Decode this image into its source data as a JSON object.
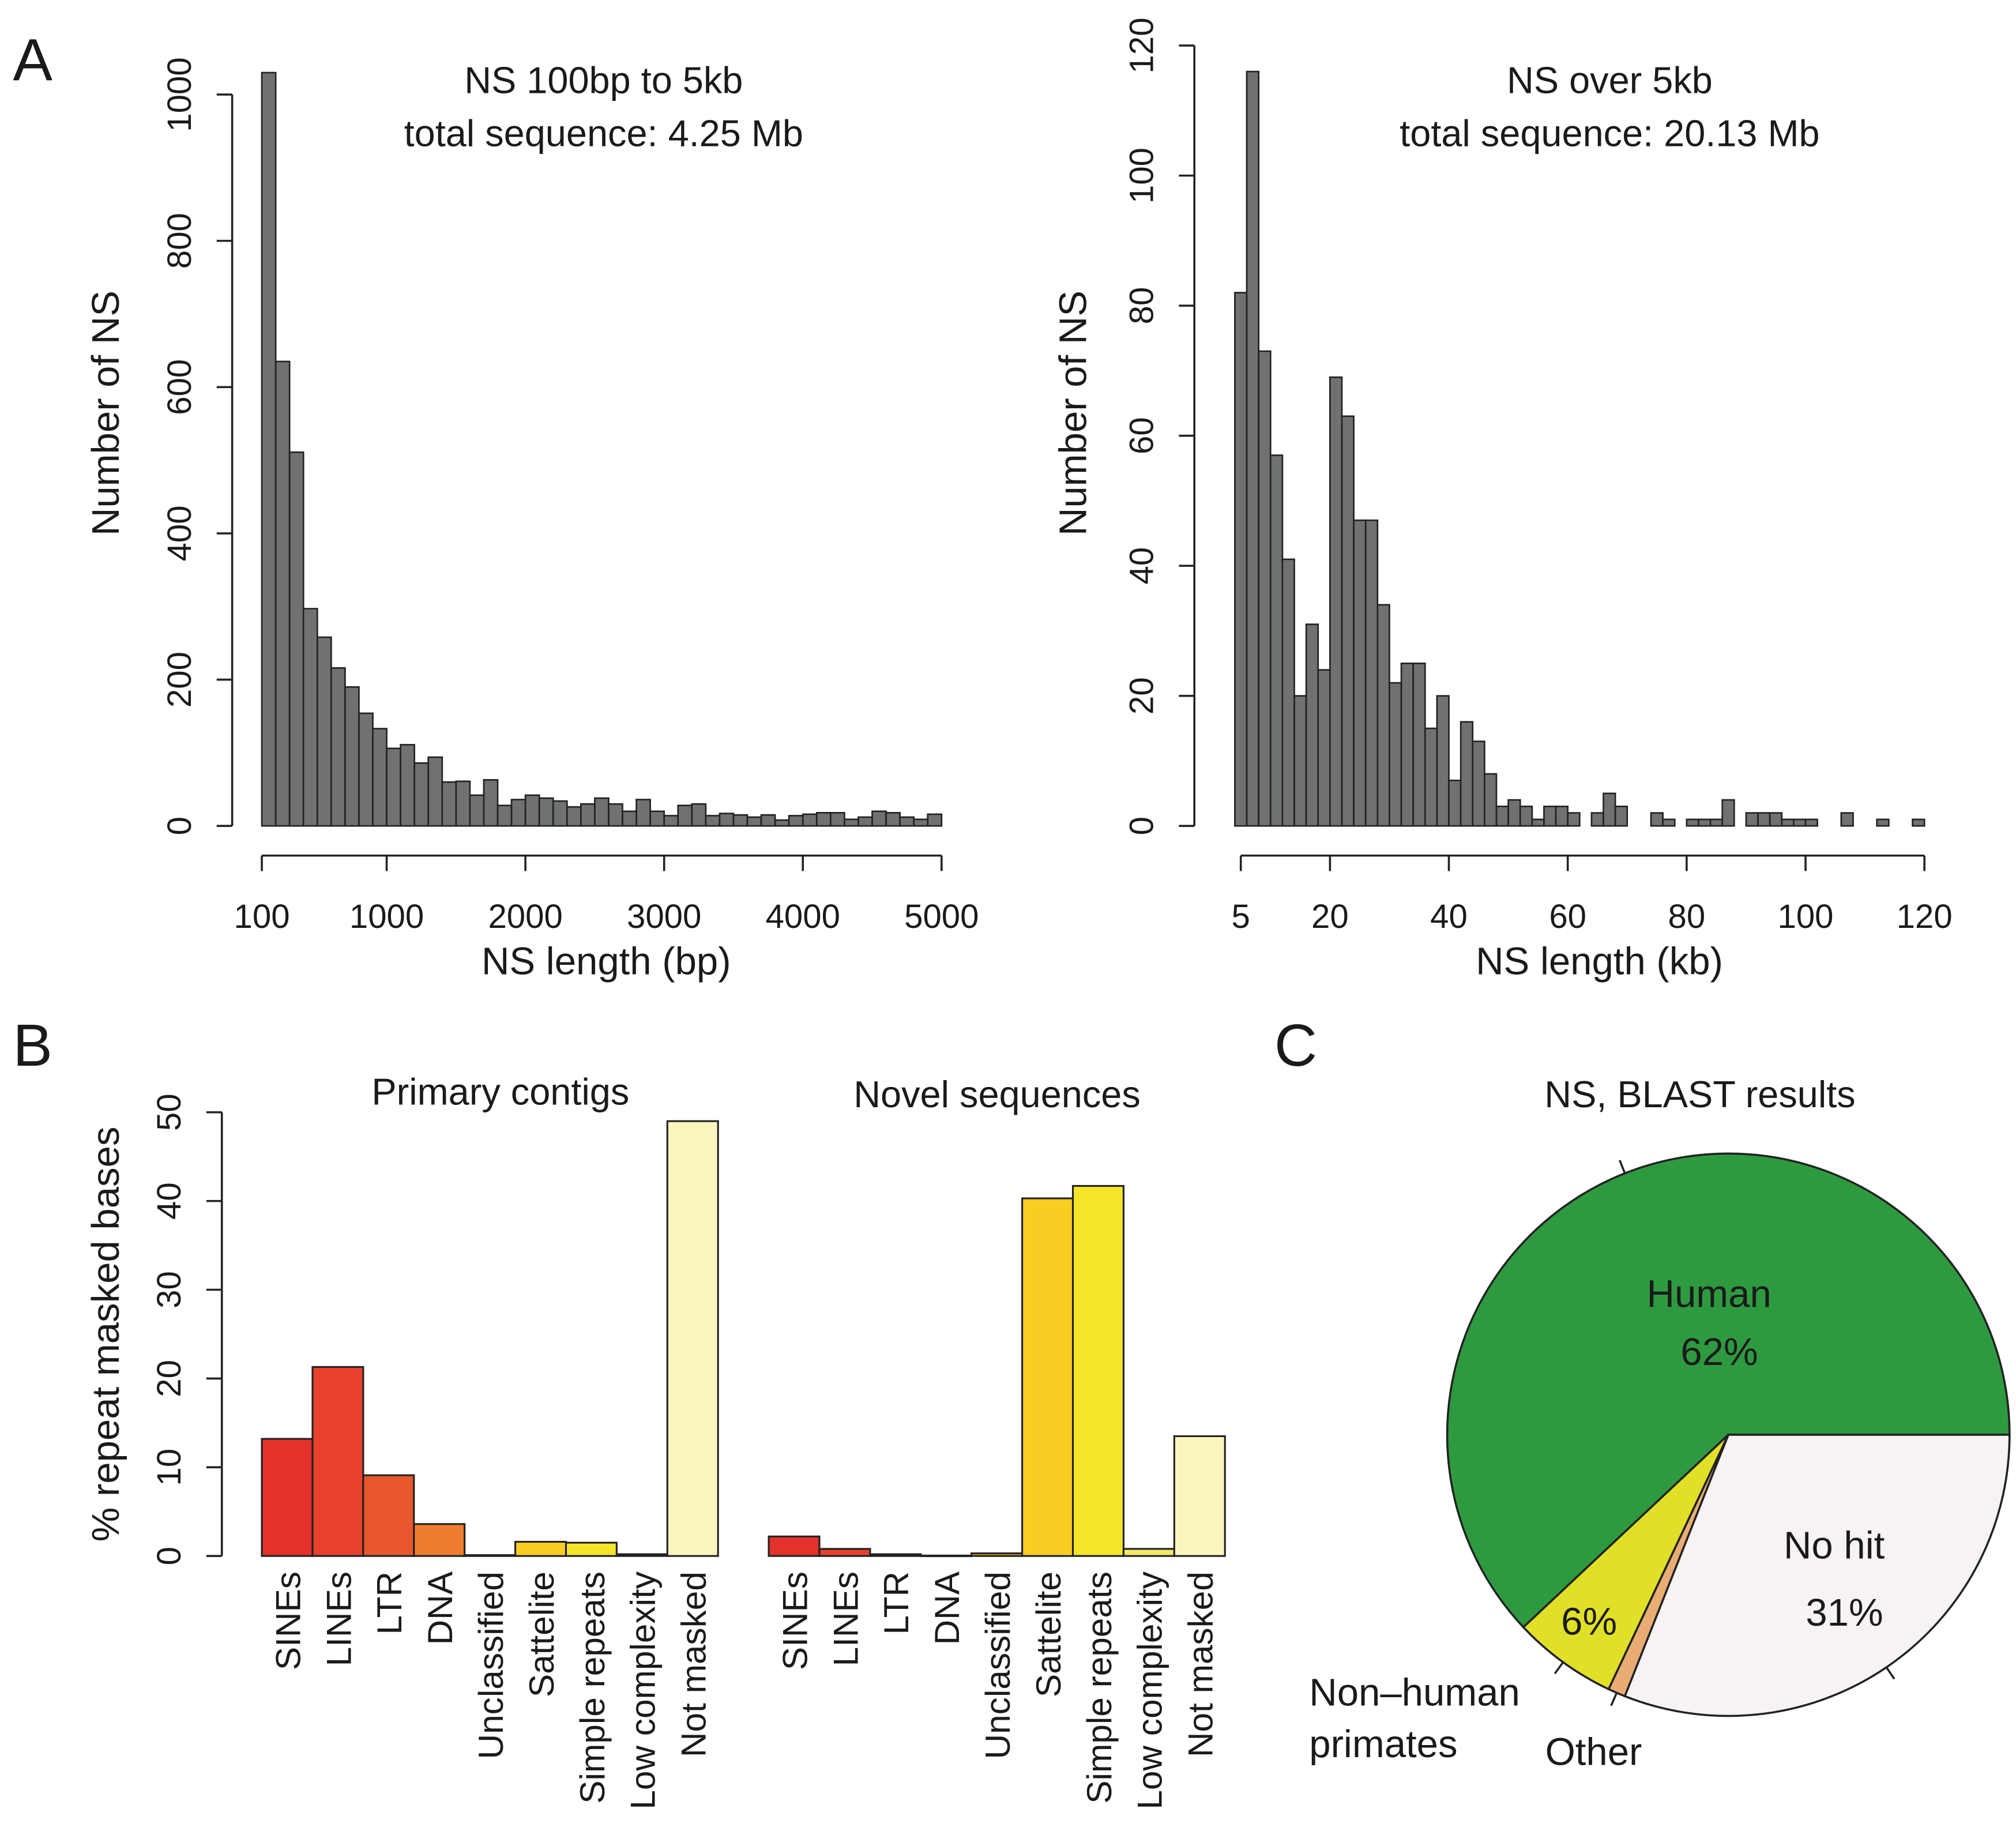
{
  "panel_letters": {
    "a": "A",
    "b": "B",
    "c": "C"
  },
  "chart_data": [
    {
      "type": "bar",
      "subtype": "histogram",
      "title": [
        "NS 100bp to 5kb",
        "total sequence: 4.25 Mb"
      ],
      "xlabel": "NS length (bp)",
      "ylabel": "Number of NS",
      "bin_start": 100,
      "bin_width": 100,
      "values": [
        1030,
        635,
        511,
        297,
        258,
        216,
        190,
        154,
        133,
        106,
        111,
        86,
        94,
        60,
        61,
        42,
        63,
        28,
        36,
        42,
        38,
        34,
        26,
        30,
        38,
        30,
        20,
        36,
        20,
        14,
        28,
        30,
        14,
        17,
        15,
        12,
        15,
        8,
        14,
        16,
        18,
        18,
        9,
        12,
        20,
        18,
        12,
        9,
        16
      ],
      "xlim": [
        100,
        5000
      ],
      "ylim": [
        0,
        1030
      ],
      "xticks": [
        100,
        1000,
        2000,
        3000,
        4000,
        5000
      ],
      "yticks": [
        0,
        200,
        400,
        600,
        800,
        1000
      ],
      "bar_color": "#707272",
      "grid": false
    },
    {
      "type": "bar",
      "subtype": "histogram",
      "title": [
        "NS over 5kb",
        "total sequence: 20.13 Mb"
      ],
      "xlabel": "NS length (kb)",
      "ylabel": "Number of NS",
      "bin_start": 4,
      "bin_width": 2,
      "values": [
        82,
        116,
        73,
        57,
        41,
        20,
        31,
        24,
        69,
        63,
        47,
        47,
        34,
        22,
        25,
        25,
        15,
        20,
        7,
        16,
        13,
        8,
        3,
        4,
        3,
        1,
        3,
        3,
        2,
        0,
        2,
        5,
        3,
        0,
        0,
        2,
        1,
        0,
        1,
        1,
        1,
        4,
        0,
        2,
        2,
        2,
        1,
        1,
        1,
        0,
        0,
        2,
        0,
        0,
        1,
        0,
        0,
        1
      ],
      "xlim": [
        5,
        120
      ],
      "ylim": [
        0,
        120
      ],
      "xticks": [
        5,
        20,
        40,
        60,
        80,
        100,
        120
      ],
      "yticks": [
        0,
        20,
        40,
        60,
        80,
        100,
        120
      ],
      "bar_color": "#707272",
      "grid": false
    },
    {
      "type": "bar",
      "ylabel": "% repeat masked bases",
      "ylim": [
        0,
        50
      ],
      "yticks": [
        0,
        10,
        20,
        30,
        40,
        50
      ],
      "categories": [
        "SINEs",
        "LINEs",
        "LTR",
        "DNA",
        "Unclassified",
        "Sattelite",
        "Simple repeats",
        "Low complexity",
        "Not masked"
      ],
      "colors": [
        "#e3312c",
        "#e8412e",
        "#e8582c",
        "#ee7d2e",
        "#f0a030",
        "#fbcd22",
        "#f5e52a",
        "#f3ea6a",
        "#fbf6bd"
      ],
      "series": [
        {
          "name": "Primary contigs",
          "values": [
            13.2,
            21.3,
            9.1,
            3.6,
            0.1,
            1.6,
            1.5,
            0.2,
            49.0
          ]
        },
        {
          "name": "Novel sequences",
          "values": [
            2.2,
            0.8,
            0.2,
            0.05,
            0.3,
            40.3,
            41.7,
            0.8,
            13.5
          ]
        }
      ],
      "grid": false
    },
    {
      "type": "pie",
      "title": "NS, BLAST results",
      "slices": [
        {
          "label": [
            "Human",
            "62%"
          ],
          "value": 62,
          "color": "#2e9a40"
        },
        {
          "label": [
            "6%"
          ],
          "outer_label": [
            "Non–human",
            "primates"
          ],
          "value": 6,
          "color": "#e1e029"
        },
        {
          "outer_label": [
            "Other"
          ],
          "value": 1,
          "color": "#e9ad74"
        },
        {
          "label": [
            "No hit",
            "31%"
          ],
          "value": 31,
          "color": "#f7f3f3"
        }
      ]
    }
  ]
}
